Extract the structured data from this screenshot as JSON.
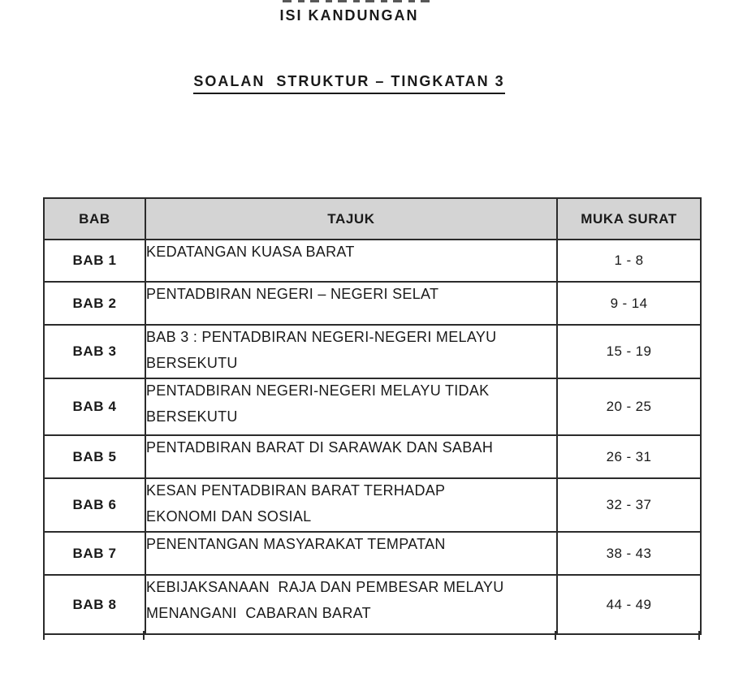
{
  "page": {
    "title": "ISI KANDUNGAN",
    "subtitle": "SOALAN  STRUKTUR – TINGKATAN 3"
  },
  "table": {
    "headers": [
      "BAB",
      "TAJUK",
      "MUKA SURAT"
    ],
    "rows": [
      {
        "bab": "BAB 1",
        "tajuk": "KEDATANGAN KUASA BARAT",
        "muka_surat": "1 - 8"
      },
      {
        "bab": "BAB 2",
        "tajuk": "PENTADBIRAN NEGERI – NEGERI SELAT",
        "muka_surat": "9 - 14"
      },
      {
        "bab": "BAB 3",
        "tajuk": "BAB 3 : PENTADBIRAN NEGERI-NEGERI MELAYU\nBERSEKUTU",
        "muka_surat": "15 - 19"
      },
      {
        "bab": "BAB 4",
        "tajuk": "PENTADBIRAN NEGERI-NEGERI MELAYU TIDAK\nBERSEKUTU",
        "muka_surat": "20 - 25"
      },
      {
        "bab": "BAB 5",
        "tajuk": "PENTADBIRAN BARAT DI SARAWAK DAN SABAH",
        "muka_surat": "26 - 31"
      },
      {
        "bab": "BAB 6",
        "tajuk": "KESAN PENTADBIRAN BARAT TERHADAP\nEKONOMI DAN SOSIAL",
        "muka_surat": "32 - 37"
      },
      {
        "bab": "BAB 7",
        "tajuk": "PENENTANGAN MASYARAKAT TEMPATAN",
        "muka_surat": "38 - 43"
      },
      {
        "bab": "BAB 8",
        "tajuk": "KEBIJAKSANAAN  RAJA DAN PEMBESAR MELAYU\nMENANGANI  CABARAN BARAT",
        "muka_surat": "44 - 49"
      }
    ]
  },
  "colors": {
    "header_bg": "#d4d4d4",
    "border": "#2b2b2b",
    "text": "#1a1a1a",
    "page_bg": "#ffffff"
  }
}
